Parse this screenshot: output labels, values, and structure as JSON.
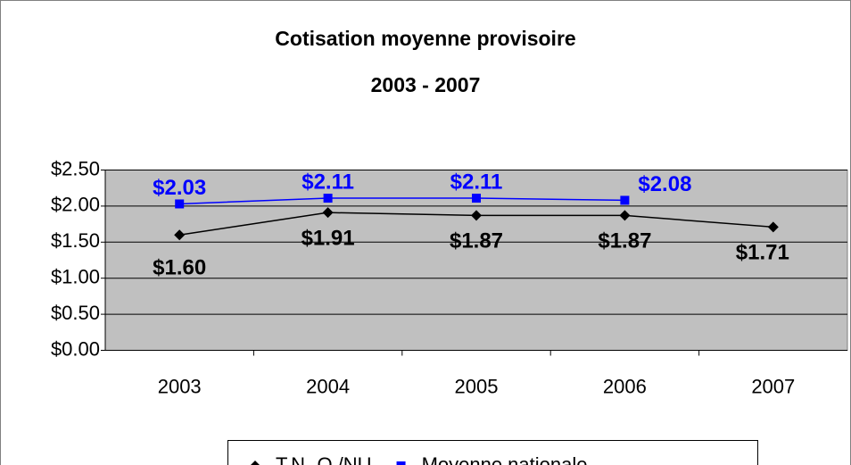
{
  "chart_data": {
    "type": "line",
    "title": "Cotisation moyenne provisoire",
    "subtitle": "2003 - 2007",
    "categories": [
      "2003",
      "2004",
      "2005",
      "2006",
      "2007"
    ],
    "series": [
      {
        "name": "T.N.-O /NU",
        "color": "#000000",
        "marker": "diamond",
        "values": [
          1.6,
          1.91,
          1.87,
          1.87,
          1.71
        ],
        "value_labels": [
          "$1.60",
          "$1.91",
          "$1.87",
          "$1.87",
          "$1.71"
        ]
      },
      {
        "name": "Moyenne nationale",
        "color": "#0000ff",
        "marker": "square",
        "values": [
          2.03,
          2.11,
          2.11,
          2.08,
          null
        ],
        "value_labels": [
          "$2.03",
          "$2.11",
          "$2.11",
          "$2.08",
          null
        ]
      }
    ],
    "ylim": [
      0,
      2.5
    ],
    "yticks": [
      {
        "value": 0,
        "label": "$0.00"
      },
      {
        "value": 0.5,
        "label": "$0.50"
      },
      {
        "value": 1.0,
        "label": "$1.00"
      },
      {
        "value": 1.5,
        "label": "$1.50"
      },
      {
        "value": 2.0,
        "label": "$2.00"
      },
      {
        "value": 2.5,
        "label": "$2.50"
      }
    ],
    "grid": true,
    "plot_background": "#c0c0c0",
    "legend": "bottom"
  }
}
